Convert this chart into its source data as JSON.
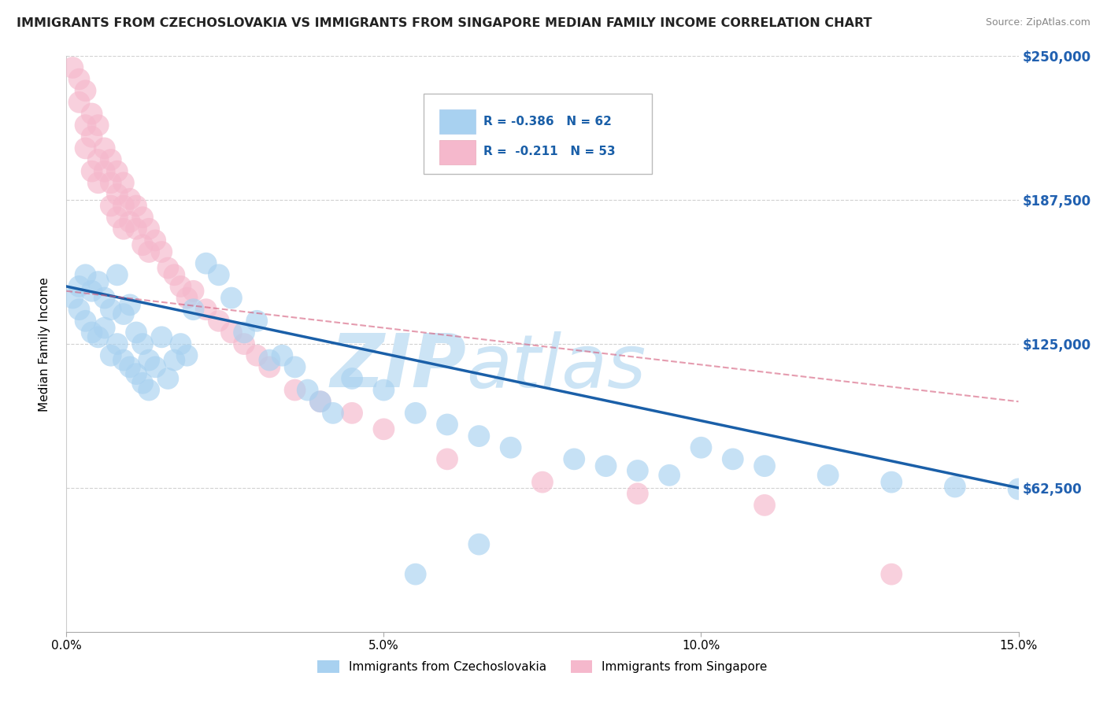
{
  "title": "IMMIGRANTS FROM CZECHOSLOVAKIA VS IMMIGRANTS FROM SINGAPORE MEDIAN FAMILY INCOME CORRELATION CHART",
  "source": "Source: ZipAtlas.com",
  "ylabel": "Median Family Income",
  "x_min": 0.0,
  "x_max": 0.15,
  "y_min": 0,
  "y_max": 250000,
  "yticks": [
    0,
    62500,
    125000,
    187500,
    250000
  ],
  "ytick_labels": [
    "",
    "$62,500",
    "$125,000",
    "$187,500",
    "$250,000"
  ],
  "legend_r1": "R = -0.386",
  "legend_n1": "N = 62",
  "legend_r2": "R =  -0.211",
  "legend_n2": "N = 53",
  "color_czech": "#a8d1f0",
  "color_sing": "#f5b8cc",
  "color_czech_line": "#1a5fa8",
  "color_sing_line": "#d45a7a",
  "watermark_color": "#cce4f5",
  "bg_color": "#ffffff",
  "grid_color": "#cccccc",
  "legend_label_czech": "Immigrants from Czechoslovakia",
  "legend_label_sing": "Immigrants from Singapore",
  "czech_x": [
    0.001,
    0.002,
    0.002,
    0.003,
    0.003,
    0.004,
    0.004,
    0.005,
    0.005,
    0.006,
    0.006,
    0.007,
    0.007,
    0.008,
    0.008,
    0.009,
    0.009,
    0.01,
    0.01,
    0.011,
    0.011,
    0.012,
    0.012,
    0.013,
    0.013,
    0.014,
    0.015,
    0.016,
    0.017,
    0.018,
    0.019,
    0.02,
    0.022,
    0.024,
    0.026,
    0.028,
    0.03,
    0.032,
    0.034,
    0.036,
    0.038,
    0.04,
    0.042,
    0.045,
    0.05,
    0.055,
    0.06,
    0.065,
    0.07,
    0.08,
    0.085,
    0.09,
    0.095,
    0.1,
    0.105,
    0.11,
    0.12,
    0.13,
    0.14,
    0.15,
    0.055,
    0.065
  ],
  "czech_y": [
    145000,
    150000,
    140000,
    155000,
    135000,
    148000,
    130000,
    152000,
    128000,
    145000,
    132000,
    140000,
    120000,
    155000,
    125000,
    138000,
    118000,
    142000,
    115000,
    130000,
    112000,
    125000,
    108000,
    118000,
    105000,
    115000,
    128000,
    110000,
    118000,
    125000,
    120000,
    140000,
    160000,
    155000,
    145000,
    130000,
    135000,
    118000,
    120000,
    115000,
    105000,
    100000,
    95000,
    110000,
    105000,
    95000,
    90000,
    85000,
    80000,
    75000,
    72000,
    70000,
    68000,
    80000,
    75000,
    72000,
    68000,
    65000,
    63000,
    62000,
    25000,
    38000
  ],
  "sing_x": [
    0.001,
    0.002,
    0.002,
    0.003,
    0.003,
    0.003,
    0.004,
    0.004,
    0.004,
    0.005,
    0.005,
    0.005,
    0.006,
    0.006,
    0.007,
    0.007,
    0.007,
    0.008,
    0.008,
    0.008,
    0.009,
    0.009,
    0.009,
    0.01,
    0.01,
    0.011,
    0.011,
    0.012,
    0.012,
    0.013,
    0.013,
    0.014,
    0.015,
    0.016,
    0.017,
    0.018,
    0.019,
    0.02,
    0.022,
    0.024,
    0.026,
    0.028,
    0.03,
    0.032,
    0.036,
    0.04,
    0.045,
    0.05,
    0.06,
    0.075,
    0.09,
    0.11,
    0.13
  ],
  "sing_y": [
    245000,
    240000,
    230000,
    235000,
    220000,
    210000,
    225000,
    215000,
    200000,
    220000,
    205000,
    195000,
    210000,
    200000,
    205000,
    195000,
    185000,
    200000,
    190000,
    180000,
    195000,
    185000,
    175000,
    188000,
    178000,
    185000,
    175000,
    180000,
    168000,
    175000,
    165000,
    170000,
    165000,
    158000,
    155000,
    150000,
    145000,
    148000,
    140000,
    135000,
    130000,
    125000,
    120000,
    115000,
    105000,
    100000,
    95000,
    88000,
    75000,
    65000,
    60000,
    55000,
    25000
  ]
}
